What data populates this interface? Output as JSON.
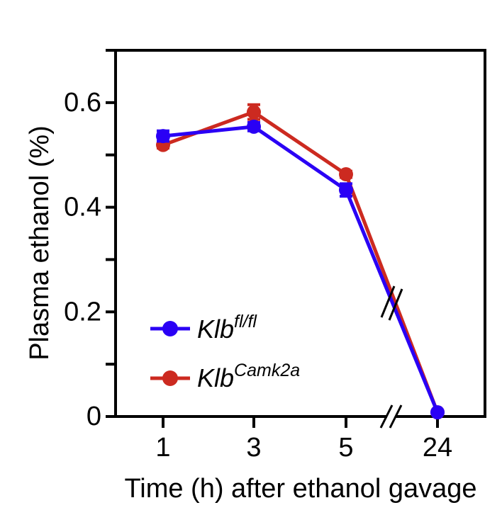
{
  "chart_data": {
    "type": "line",
    "title": "",
    "xlabel": "Time (h) after ethanol gavage",
    "ylabel": "Plasma ethanol (%)",
    "x": [
      "1",
      "3",
      "5",
      "24"
    ],
    "ylim": [
      0,
      0.7
    ],
    "y_ticks": [
      {
        "value": 0,
        "label": "0"
      },
      {
        "value": 0.2,
        "label": "0.2"
      },
      {
        "value": 0.4,
        "label": "0.4"
      },
      {
        "value": 0.6,
        "label": "0.6"
      }
    ],
    "x_axis_break": "between 5 and 24",
    "grid": false,
    "legend_position": "bottom-left",
    "series": [
      {
        "name_base": "Klb",
        "name_sup": "fl/fl",
        "color": "#2a00f5",
        "values": [
          0.536,
          0.554,
          0.433,
          0.008
        ],
        "errors": [
          0.01,
          0.008,
          0.012,
          0.002
        ]
      },
      {
        "name_base": "Klb",
        "name_sup": "Camk2a",
        "color": "#cc2a20",
        "values": [
          0.519,
          0.582,
          0.463,
          0.008
        ],
        "errors": [
          0.006,
          0.014,
          0.006,
          0.002
        ]
      }
    ]
  }
}
